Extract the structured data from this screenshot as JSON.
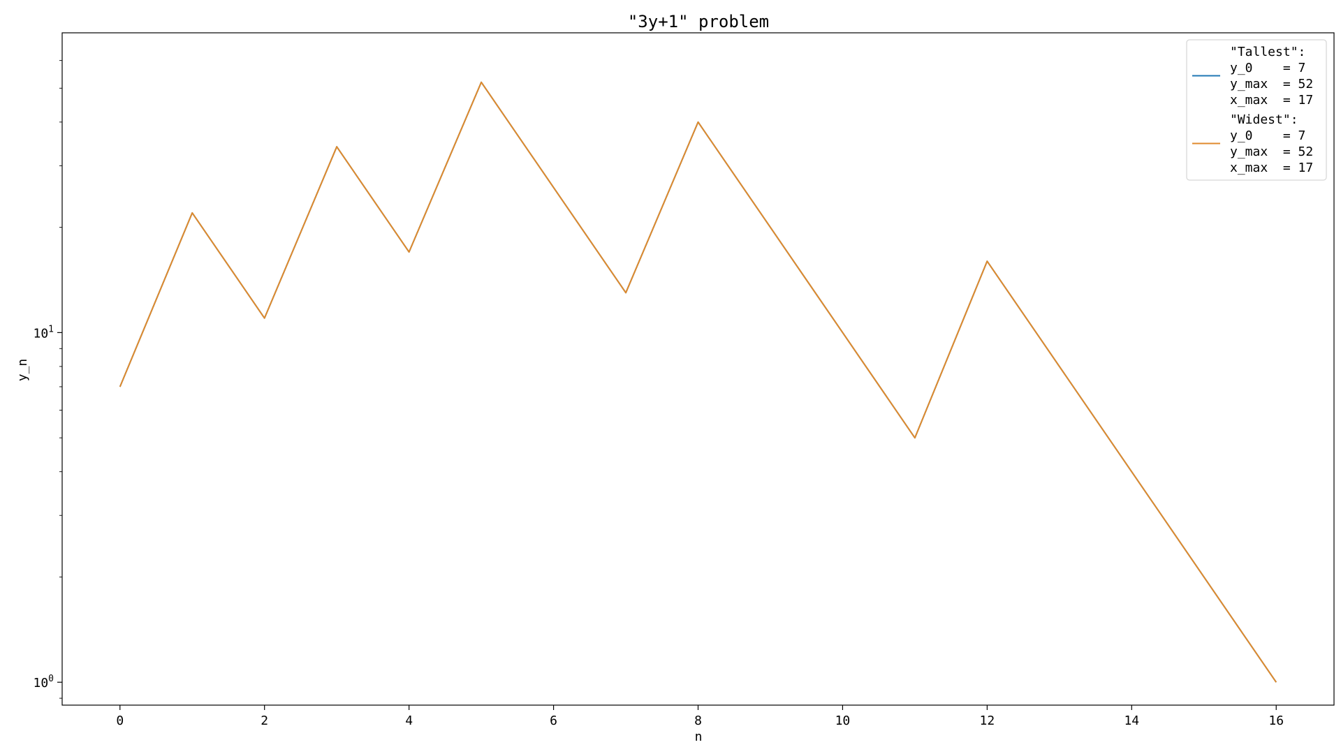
{
  "chart_data": {
    "type": "line",
    "title": "\"3y+1\" problem",
    "xlabel": "n",
    "ylabel": "y_n",
    "xlim": [
      -0.8,
      16.8
    ],
    "ylim": [
      0.86,
      72
    ],
    "yscale": "log",
    "x_ticks": [
      0,
      2,
      4,
      6,
      8,
      10,
      12,
      14,
      16
    ],
    "x_tick_labels": [
      "0",
      "2",
      "4",
      "6",
      "8",
      "10",
      "12",
      "14",
      "16"
    ],
    "y_major_ticks": [
      1,
      10
    ],
    "y_tick_labels": [
      {
        "base": "10",
        "exp": "0"
      },
      {
        "base": "10",
        "exp": "1"
      }
    ],
    "y_minor_ticks": [
      0.9,
      2,
      3,
      4,
      5,
      6,
      7,
      8,
      9,
      20,
      30,
      40,
      50,
      60
    ],
    "grid": false,
    "legend_position": "top-right",
    "series": [
      {
        "name_lines": [
          "\"Tallest\":",
          "y_0    = 7",
          "y_max  = 52",
          "x_max  = 17"
        ],
        "color": "#1f77b4",
        "x": [
          0,
          1,
          2,
          3,
          4,
          5,
          6,
          7,
          8,
          9,
          10,
          11,
          12,
          13,
          14,
          15,
          16
        ],
        "y": [
          7,
          22,
          11,
          34,
          17,
          52,
          26,
          13,
          40,
          20,
          10,
          5,
          16,
          8,
          4,
          2,
          1
        ]
      },
      {
        "name_lines": [
          "\"Widest\":",
          "y_0    = 7",
          "y_max  = 52",
          "x_max  = 17"
        ],
        "color": "#e08a2c",
        "x": [
          0,
          1,
          2,
          3,
          4,
          5,
          6,
          7,
          8,
          9,
          10,
          11,
          12,
          13,
          14,
          15,
          16
        ],
        "y": [
          7,
          22,
          11,
          34,
          17,
          52,
          26,
          13,
          40,
          20,
          10,
          5,
          16,
          8,
          4,
          2,
          1
        ]
      }
    ]
  }
}
